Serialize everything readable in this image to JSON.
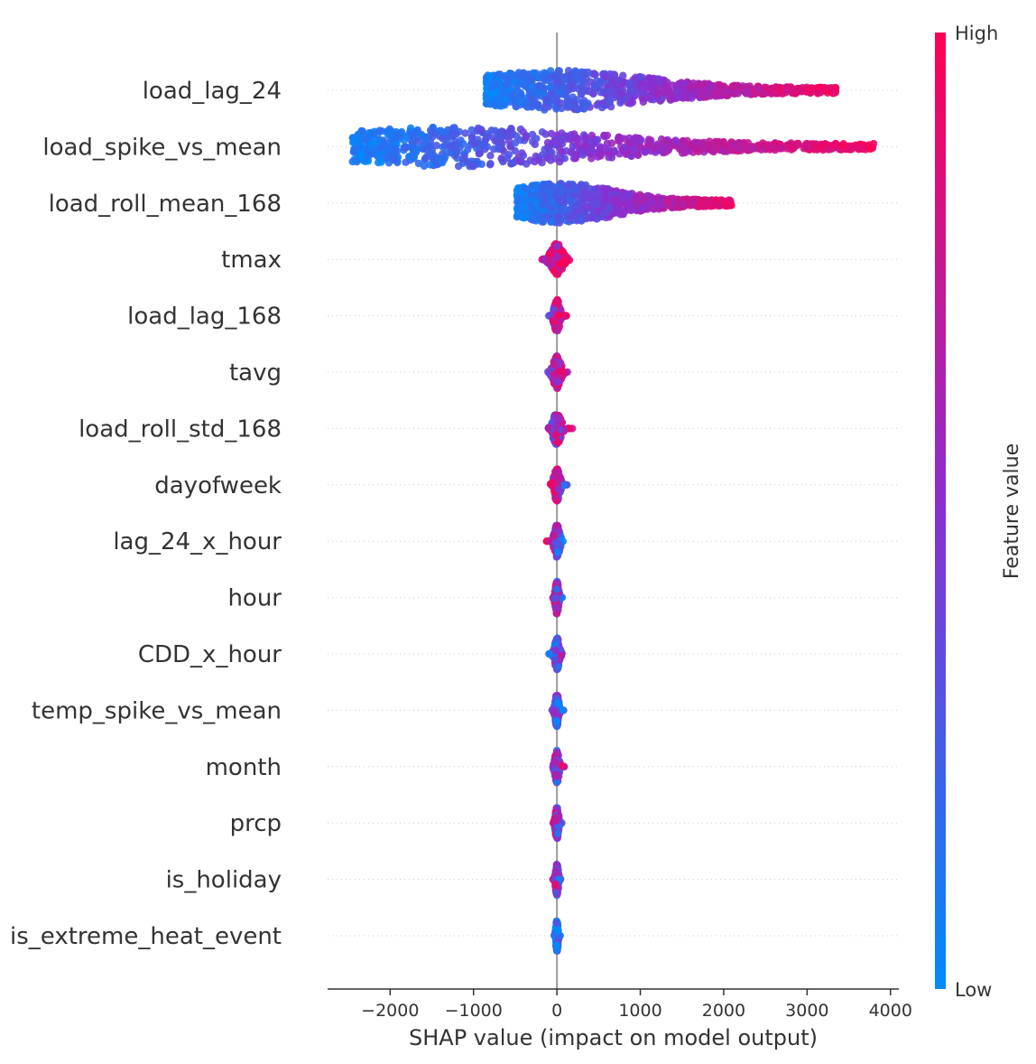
{
  "chart_data": {
    "type": "scatter",
    "subtype": "shap-beeswarm",
    "title": "",
    "xlabel": "SHAP value (impact on model output)",
    "ylabel": "",
    "xlim": [
      -2750,
      4100
    ],
    "xticks": [
      -2000,
      -1000,
      0,
      1000,
      2000,
      3000,
      4000
    ],
    "xtick_labels": [
      "−2000",
      "−1000",
      "0",
      "1000",
      "2000",
      "3000",
      "4000"
    ],
    "colorbar": {
      "title": "Feature value",
      "high_label": "High",
      "low_label": "Low",
      "high_color": "#ff0052",
      "low_color": "#008bfb"
    },
    "features": [
      {
        "name": "load_lag_24",
        "shap_min": -850,
        "shap_max": 3350,
        "min_shap_color": "low",
        "max_shap_color": "high",
        "density": 1.0
      },
      {
        "name": "load_spike_vs_mean",
        "shap_min": -2450,
        "shap_max": 3800,
        "min_shap_color": "low",
        "max_shap_color": "high",
        "density": 1.0
      },
      {
        "name": "load_roll_mean_168",
        "shap_min": -480,
        "shap_max": 2100,
        "min_shap_color": "low",
        "max_shap_color": "high",
        "density": 0.9
      },
      {
        "name": "tmax",
        "shap_min": -300,
        "shap_max": 150,
        "min_shap_color": "mixed",
        "max_shap_color": "high",
        "density": 0.5
      },
      {
        "name": "load_lag_168",
        "shap_min": -100,
        "shap_max": 120,
        "min_shap_color": "mixed",
        "max_shap_color": "high",
        "density": 0.4
      },
      {
        "name": "tavg",
        "shap_min": -150,
        "shap_max": 140,
        "min_shap_color": "mixed",
        "max_shap_color": "high",
        "density": 0.4
      },
      {
        "name": "load_roll_std_168",
        "shap_min": -100,
        "shap_max": 220,
        "min_shap_color": "mixed",
        "max_shap_color": "high",
        "density": 0.4
      },
      {
        "name": "dayofweek",
        "shap_min": -90,
        "shap_max": 140,
        "min_shap_color": "high",
        "max_shap_color": "low",
        "density": 0.35
      },
      {
        "name": "lag_24_x_hour",
        "shap_min": -130,
        "shap_max": 80,
        "min_shap_color": "high",
        "max_shap_color": "low",
        "density": 0.35
      },
      {
        "name": "hour",
        "shap_min": -60,
        "shap_max": 70,
        "min_shap_color": "mixed",
        "max_shap_color": "mixed",
        "density": 0.3
      },
      {
        "name": "CDD_x_hour",
        "shap_min": -120,
        "shap_max": 60,
        "min_shap_color": "low",
        "max_shap_color": "mixed",
        "density": 0.3
      },
      {
        "name": "temp_spike_vs_mean",
        "shap_min": -60,
        "shap_max": 80,
        "min_shap_color": "mixed",
        "max_shap_color": "low",
        "density": 0.3
      },
      {
        "name": "month",
        "shap_min": -60,
        "shap_max": 90,
        "min_shap_color": "mixed",
        "max_shap_color": "mixed",
        "density": 0.3
      },
      {
        "name": "prcp",
        "shap_min": -60,
        "shap_max": 60,
        "min_shap_color": "high",
        "max_shap_color": "low",
        "density": 0.3
      },
      {
        "name": "is_holiday",
        "shap_min": -50,
        "shap_max": 50,
        "min_shap_color": "high",
        "max_shap_color": "low",
        "density": 0.25
      },
      {
        "name": "is_extreme_heat_event",
        "shap_min": -40,
        "shap_max": 40,
        "min_shap_color": "low",
        "max_shap_color": "low",
        "density": 0.25
      }
    ]
  }
}
